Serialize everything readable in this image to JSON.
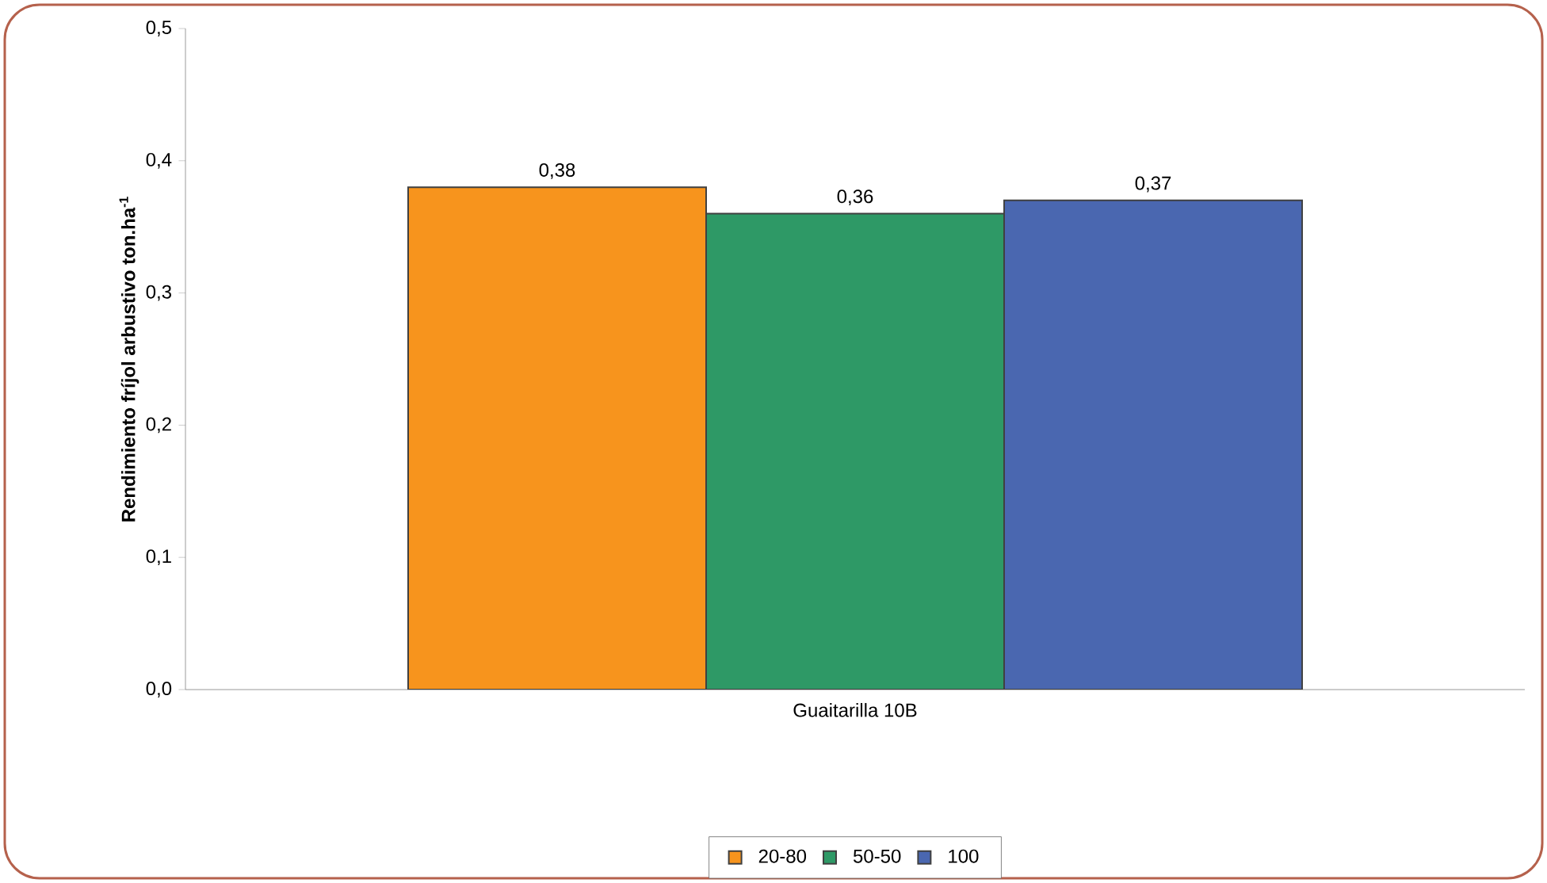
{
  "chart_data": {
    "type": "bar",
    "categories": [
      "Guaitarilla 10B"
    ],
    "ylabel": "Rendimiento fríjol arbustivo ton.ha$^{-1}$",
    "series": [
      {
        "name": "20-80",
        "color": "#f7941d",
        "values": [
          0.38
        ],
        "value_labels": [
          "0,38"
        ]
      },
      {
        "name": "50-50",
        "color": "#2e9966",
        "values": [
          0.36
        ],
        "value_labels": [
          "0,36"
        ]
      },
      {
        "name": "100",
        "color": "#4a67b0",
        "values": [
          0.37
        ],
        "value_labels": [
          "0,37"
        ]
      }
    ],
    "ylim": [
      0,
      0.5
    ],
    "yticks": [
      {
        "value": 0,
        "label": "0,0"
      },
      {
        "value": 0.1,
        "label": "0,1"
      },
      {
        "value": 0.2,
        "label": "0,2"
      },
      {
        "value": 0.3,
        "label": "0,3"
      },
      {
        "value": 0.4,
        "label": "0,4"
      },
      {
        "value": 0.5,
        "label": "0,5"
      }
    ],
    "legend": "bottom"
  }
}
